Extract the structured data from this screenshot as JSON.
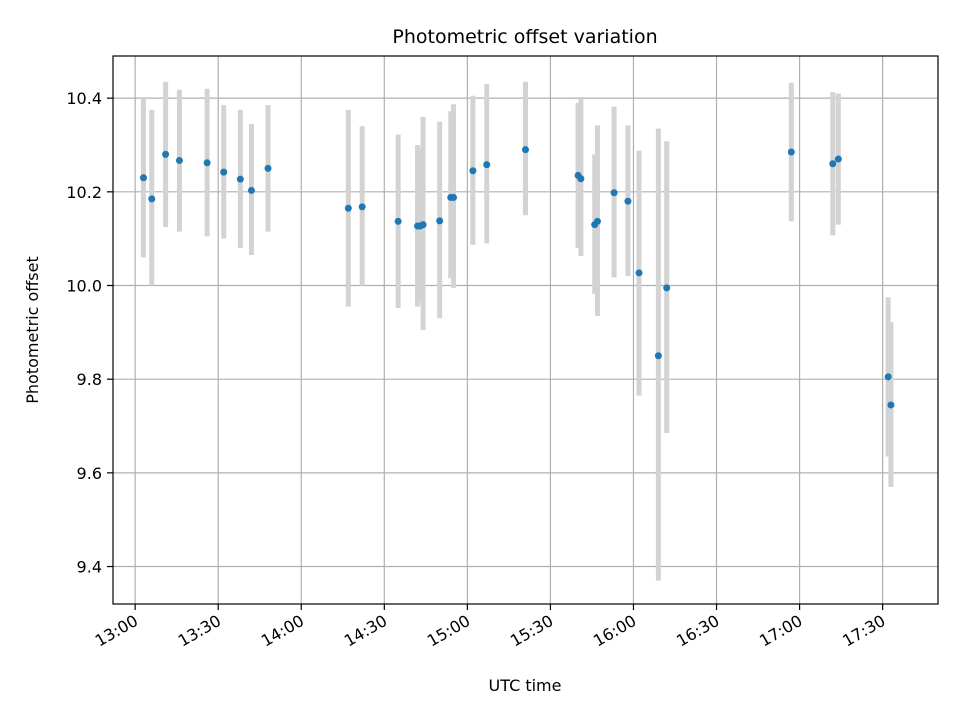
{
  "chart_data": {
    "type": "scatter",
    "title": "Photometric offset variation",
    "xlabel": "UTC time",
    "ylabel": "Photometric offset",
    "xlim": [
      "12:52",
      "17:50"
    ],
    "ylim": [
      9.32,
      10.49
    ],
    "x_ticks": [
      "13:00",
      "13:30",
      "14:00",
      "14:30",
      "15:00",
      "15:30",
      "16:00",
      "16:30",
      "17:00",
      "17:30"
    ],
    "y_ticks": [
      "9.4",
      "9.6",
      "9.8",
      "10.0",
      "10.2",
      "10.4"
    ],
    "grid": true,
    "colors": {
      "marker": "#1f77b4",
      "errorbar": "#d3d3d3",
      "grid": "#b0b0b0"
    },
    "series": [
      {
        "points": [
          {
            "x": "13:03",
            "y": 10.23,
            "err_low": 10.06,
            "err_high": 10.4
          },
          {
            "x": "13:06",
            "y": 10.185,
            "err_low": 10.0,
            "err_high": 10.375
          },
          {
            "x": "13:11",
            "y": 10.28,
            "err_low": 10.125,
            "err_high": 10.435
          },
          {
            "x": "13:16",
            "y": 10.267,
            "err_low": 10.115,
            "err_high": 10.418
          },
          {
            "x": "13:26",
            "y": 10.262,
            "err_low": 10.105,
            "err_high": 10.42
          },
          {
            "x": "13:32",
            "y": 10.242,
            "err_low": 10.1,
            "err_high": 10.385
          },
          {
            "x": "13:38",
            "y": 10.227,
            "err_low": 10.08,
            "err_high": 10.375
          },
          {
            "x": "13:42",
            "y": 10.203,
            "err_low": 10.065,
            "err_high": 10.345
          },
          {
            "x": "13:48",
            "y": 10.25,
            "err_low": 10.115,
            "err_high": 10.385
          },
          {
            "x": "14:17",
            "y": 10.165,
            "err_low": 9.955,
            "err_high": 10.375
          },
          {
            "x": "14:22",
            "y": 10.168,
            "err_low": 10.0,
            "err_high": 10.34
          },
          {
            "x": "14:35",
            "y": 10.137,
            "err_low": 9.952,
            "err_high": 10.322
          },
          {
            "x": "14:42",
            "y": 10.127,
            "err_low": 9.955,
            "err_high": 10.3
          },
          {
            "x": "14:43",
            "y": 10.127,
            "err_low": 9.965,
            "err_high": 10.29
          },
          {
            "x": "14:44",
            "y": 10.13,
            "err_low": 9.905,
            "err_high": 10.36
          },
          {
            "x": "14:50",
            "y": 10.138,
            "err_low": 9.93,
            "err_high": 10.35
          },
          {
            "x": "14:54",
            "y": 10.188,
            "err_low": 10.015,
            "err_high": 10.372
          },
          {
            "x": "14:55",
            "y": 10.188,
            "err_low": 9.995,
            "err_high": 10.387
          },
          {
            "x": "15:02",
            "y": 10.245,
            "err_low": 10.087,
            "err_high": 10.405
          },
          {
            "x": "15:07",
            "y": 10.258,
            "err_low": 10.09,
            "err_high": 10.43
          },
          {
            "x": "15:21",
            "y": 10.29,
            "err_low": 10.15,
            "err_high": 10.435
          },
          {
            "x": "15:40",
            "y": 10.235,
            "err_low": 10.08,
            "err_high": 10.39
          },
          {
            "x": "15:41",
            "y": 10.228,
            "err_low": 10.063,
            "err_high": 10.398
          },
          {
            "x": "15:46",
            "y": 10.13,
            "err_low": 9.982,
            "err_high": 10.28
          },
          {
            "x": "15:47",
            "y": 10.137,
            "err_low": 9.935,
            "err_high": 10.342
          },
          {
            "x": "15:53",
            "y": 10.198,
            "err_low": 10.017,
            "err_high": 10.382
          },
          {
            "x": "15:58",
            "y": 10.18,
            "err_low": 10.02,
            "err_high": 10.342
          },
          {
            "x": "16:02",
            "y": 10.027,
            "err_low": 9.765,
            "err_high": 10.288
          },
          {
            "x": "16:09",
            "y": 9.85,
            "err_low": 9.37,
            "err_high": 10.335
          },
          {
            "x": "16:12",
            "y": 9.995,
            "err_low": 9.685,
            "err_high": 10.308
          },
          {
            "x": "16:57",
            "y": 10.285,
            "err_low": 10.137,
            "err_high": 10.433
          },
          {
            "x": "17:12",
            "y": 10.26,
            "err_low": 10.107,
            "err_high": 10.413
          },
          {
            "x": "17:14",
            "y": 10.27,
            "err_low": 10.13,
            "err_high": 10.41
          },
          {
            "x": "17:32",
            "y": 9.805,
            "err_low": 9.635,
            "err_high": 9.975
          },
          {
            "x": "17:33",
            "y": 9.745,
            "err_low": 9.57,
            "err_high": 9.922
          }
        ]
      }
    ]
  }
}
